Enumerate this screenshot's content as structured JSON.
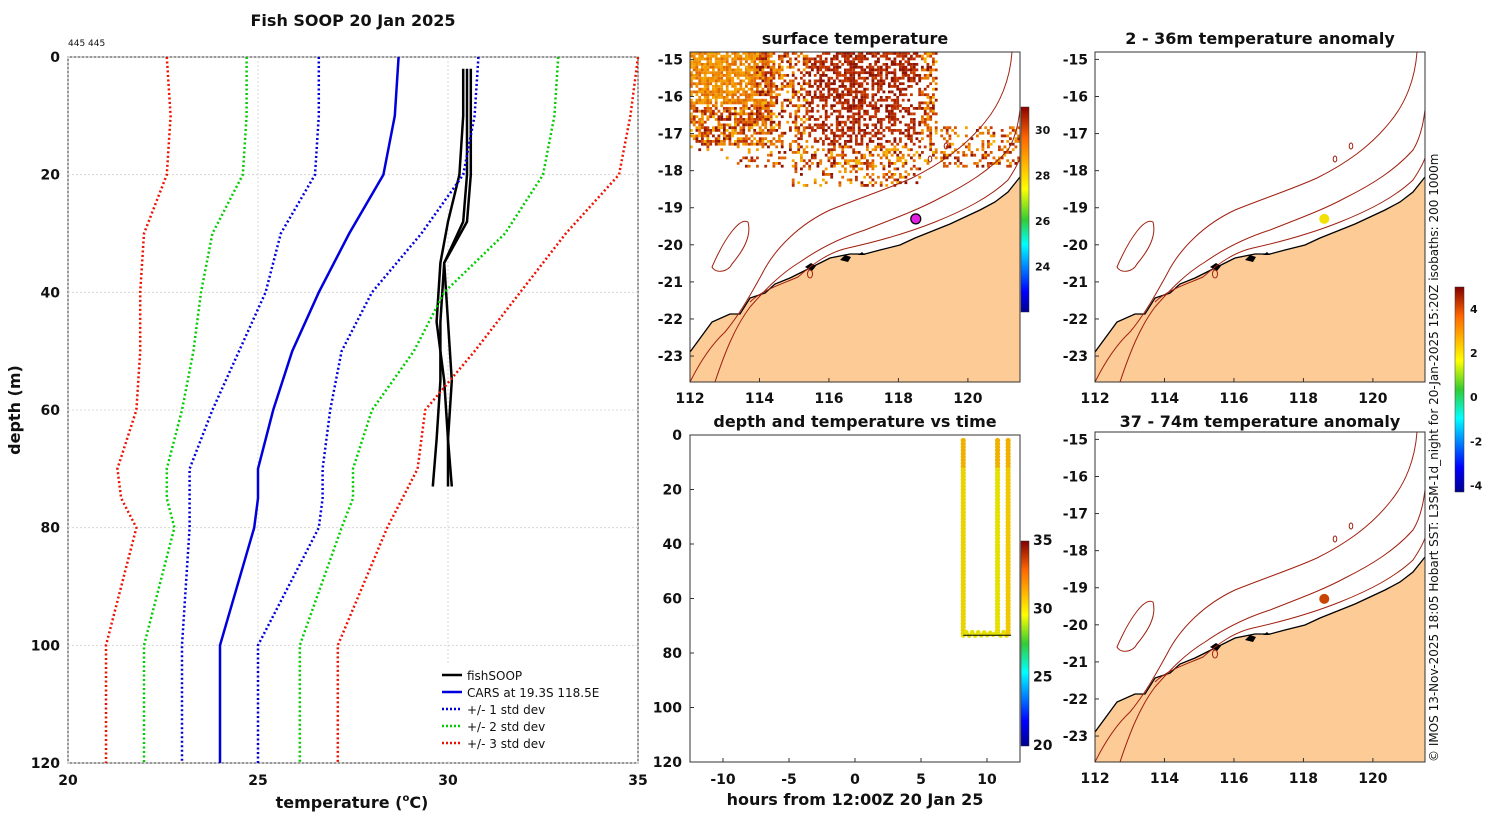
{
  "colors": {
    "fishsoop": "#000000",
    "cars": "#0000dd",
    "std1": "#0000dd",
    "std2": "#00cc00",
    "std3": "#ee1100",
    "land": "#fccb96",
    "isobath": "#a02010",
    "marker": "#e020e0"
  },
  "chart_data": [
    {
      "type": "line",
      "title": "Fish SOOP 20 Jan 2025",
      "subtitle": "445 445",
      "xlabel": "temperature (",
      "xlabel_sup": "o",
      "xlabel_end": "C)",
      "ylabel": "depth (m)",
      "xlim": [
        20,
        35
      ],
      "ylim": [
        0,
        120
      ],
      "xticks": [
        "20",
        "25",
        "30",
        "35"
      ],
      "yticks": [
        "0",
        "20",
        "40",
        "60",
        "80",
        "100",
        "120"
      ],
      "grid": true,
      "legend_position": "bottom-right",
      "depths": [
        0,
        10,
        20,
        30,
        40,
        50,
        60,
        70,
        75,
        80,
        100,
        120
      ],
      "series": [
        {
          "name": "fishSOOP",
          "style": "solid",
          "color": "#000000",
          "profiles": [
            {
              "t": [
                30.5,
                30.5,
                30.5,
                30.4,
                29.9,
                29.8,
                29.8,
                29.7,
                29.6
              ],
              "d": [
                2,
                10,
                20,
                28,
                35,
                45,
                55,
                65,
                73
              ]
            },
            {
              "t": [
                30.4,
                30.4,
                30.3,
                30.0,
                29.8,
                29.7,
                29.9,
                30.0,
                30.0
              ],
              "d": [
                2,
                10,
                20,
                28,
                35,
                45,
                55,
                65,
                73
              ]
            },
            {
              "t": [
                30.6,
                30.6,
                30.6,
                30.5,
                29.9,
                30.0,
                30.1,
                30.0,
                30.1
              ],
              "d": [
                2,
                10,
                20,
                28,
                35,
                45,
                55,
                65,
                73
              ]
            }
          ]
        },
        {
          "name": "CARS at 19.3S 118.5E",
          "style": "solid",
          "color": "#0000dd",
          "values": [
            28.7,
            28.6,
            28.3,
            27.4,
            26.6,
            25.9,
            25.4,
            25.0,
            25.0,
            24.9,
            24.0,
            24.0
          ]
        },
        {
          "name": "+/- 1 std dev",
          "style": "dotted",
          "color": "#0000dd",
          "low": [
            26.6,
            26.6,
            26.5,
            25.6,
            25.2,
            24.5,
            23.8,
            23.2,
            23.2,
            23.2,
            23.0,
            23.0
          ],
          "high": [
            30.8,
            30.7,
            30.4,
            29.3,
            28.0,
            27.2,
            26.9,
            26.7,
            26.7,
            26.6,
            25.0,
            25.0
          ]
        },
        {
          "name": "+/- 2 std dev",
          "style": "dotted",
          "color": "#00cc00",
          "low": [
            24.7,
            24.7,
            24.6,
            23.8,
            23.5,
            23.3,
            23.0,
            22.6,
            22.6,
            22.8,
            22.0,
            22.0
          ],
          "high": [
            32.9,
            32.8,
            32.5,
            31.5,
            29.9,
            29.1,
            28.0,
            27.5,
            27.5,
            27.2,
            26.1,
            26.1
          ]
        },
        {
          "name": "+/- 3 std dev",
          "style": "dotted",
          "color": "#ee1100",
          "low": [
            22.6,
            22.7,
            22.6,
            22.0,
            21.9,
            21.9,
            21.8,
            21.3,
            21.4,
            21.8,
            21.0,
            21.0
          ],
          "high": [
            35.0,
            34.8,
            34.5,
            33.1,
            31.9,
            30.7,
            29.4,
            29.2,
            28.8,
            28.4,
            27.1,
            27.1
          ]
        }
      ]
    },
    {
      "type": "heatmap",
      "title": "surface temperature",
      "xlim": [
        112,
        121.5
      ],
      "ylim": [
        -23.7,
        -14.8
      ],
      "xticks": [
        "112",
        "114",
        "116",
        "118",
        "120"
      ],
      "yticks": [
        "-15",
        "-16",
        "-17",
        "-18",
        "-19",
        "-20",
        "-21",
        "-22",
        "-23"
      ],
      "colorbar": {
        "range": [
          22,
          31
        ],
        "ticks": [
          "30",
          "28",
          "26",
          "24"
        ]
      },
      "vessel_position": {
        "lon": 118.5,
        "lat": -19.3
      }
    },
    {
      "type": "scatter",
      "title": "depth and temperature vs time",
      "xlabel": "hours from 12:00Z 20 Jan 25",
      "xlim": [
        -12.5,
        12.5
      ],
      "ylim": [
        0,
        120
      ],
      "xticks": [
        "-10",
        "-5",
        "0",
        "5",
        "10"
      ],
      "yticks": [
        "0",
        "20",
        "40",
        "60",
        "80",
        "100",
        "120"
      ],
      "colorbar": {
        "range": [
          20,
          35
        ],
        "ticks": [
          "35",
          "30",
          "25",
          "20"
        ]
      },
      "casts": [
        {
          "hours": 8.2,
          "depth_min": 2,
          "depth_max": 73,
          "temp": 30.4
        },
        {
          "hours": 10.8,
          "depth_min": 2,
          "depth_max": 73,
          "temp": 30.3
        },
        {
          "hours": 11.6,
          "depth_min": 2,
          "depth_max": 73,
          "temp": 30.5
        }
      ]
    },
    {
      "type": "heatmap",
      "title": "2 - 36m temperature anomaly",
      "xlim": [
        112,
        121.5
      ],
      "ylim": [
        -23.7,
        -14.8
      ],
      "xticks": [
        "112",
        "114",
        "116",
        "118",
        "120"
      ],
      "yticks": [
        "-15",
        "-16",
        "-17",
        "-18",
        "-19",
        "-20",
        "-21",
        "-22",
        "-23"
      ],
      "anomaly": {
        "lon": 118.6,
        "lat": -19.3,
        "value": 2.5
      }
    },
    {
      "type": "heatmap",
      "title": "37 - 74m temperature anomaly",
      "xlim": [
        112,
        121.5
      ],
      "ylim": [
        -23.7,
        -14.8
      ],
      "xticks": [
        "112",
        "114",
        "116",
        "118",
        "120"
      ],
      "yticks": [
        "-15",
        "-16",
        "-17",
        "-18",
        "-19",
        "-20",
        "-21",
        "-22",
        "-23"
      ],
      "anomaly": {
        "lon": 118.6,
        "lat": -19.3,
        "value": 4.0
      }
    }
  ],
  "anomaly_colorbar": {
    "range": [
      -4.3,
      5
    ],
    "ticks": [
      "4",
      "2",
      "0",
      "-2",
      "-4"
    ]
  },
  "side_text": "© IMOS 13-Nov-2025 18:05 Hobart SST: L3SM-1d_night for 20-Jan-2025 15:20Z isobaths: 200  1000m"
}
